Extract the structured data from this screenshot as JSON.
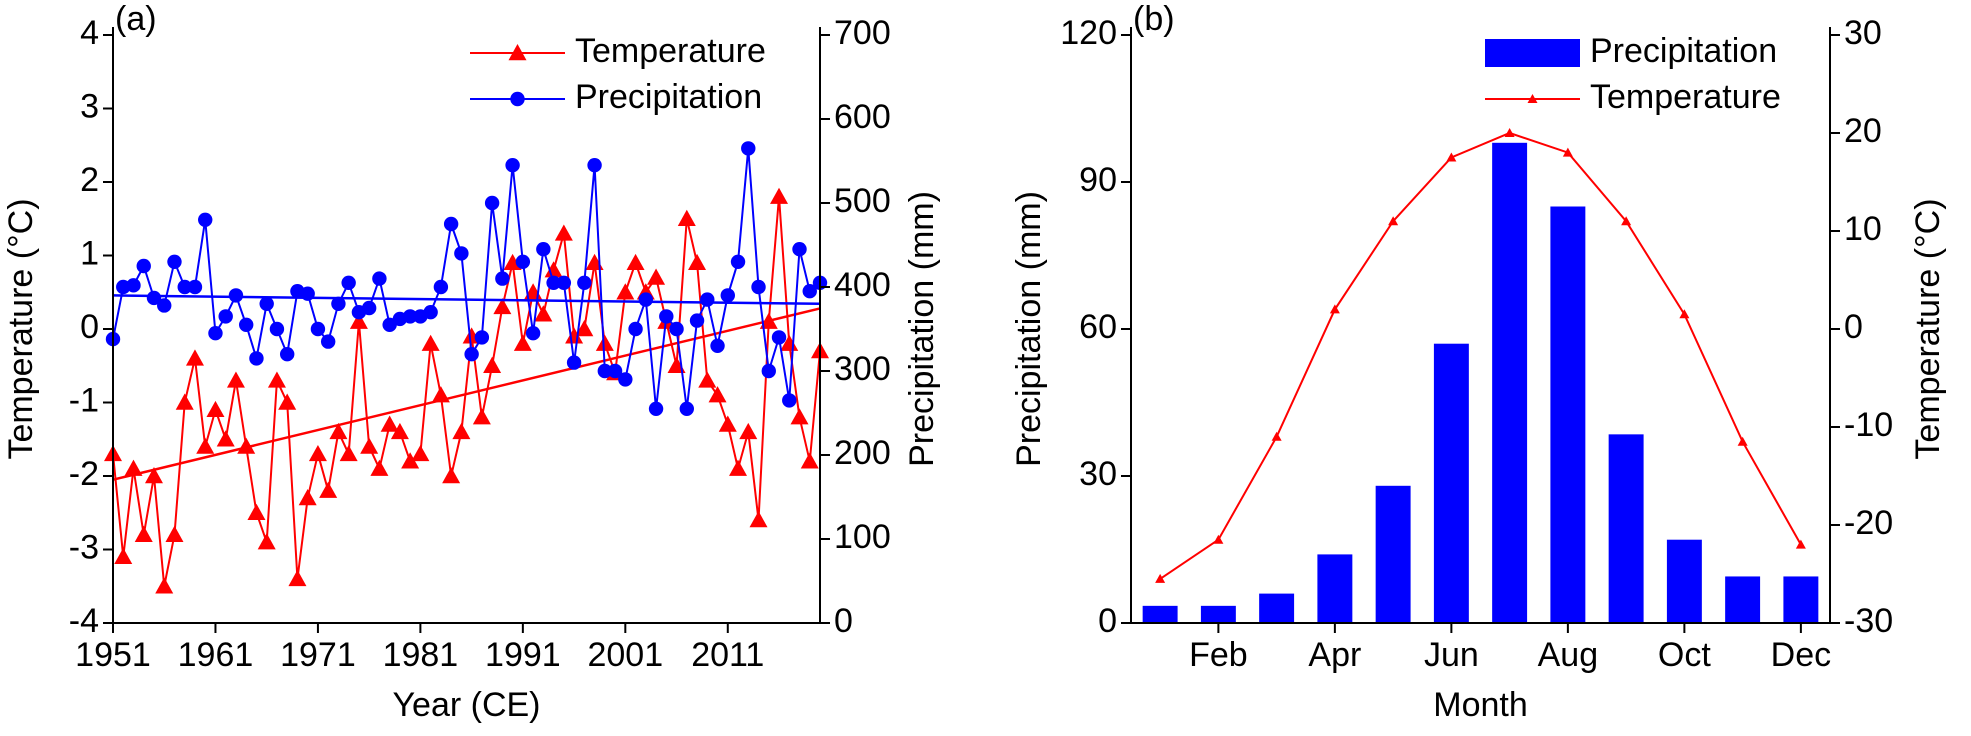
{
  "chart_data": [
    {
      "type": "line",
      "title": "(a)",
      "xlabel": "Year (CE)",
      "ylabel": "Temperature (°C)",
      "y2label": "Precipitation (mm)",
      "x": [
        1951,
        1952,
        1953,
        1954,
        1955,
        1956,
        1957,
        1958,
        1959,
        1960,
        1961,
        1962,
        1963,
        1964,
        1965,
        1966,
        1967,
        1968,
        1969,
        1970,
        1971,
        1972,
        1973,
        1974,
        1975,
        1976,
        1977,
        1978,
        1979,
        1980,
        1981,
        1982,
        1983,
        1984,
        1985,
        1986,
        1987,
        1988,
        1989,
        1990,
        1991,
        1992,
        1993,
        1994,
        1995,
        1996,
        1997,
        1998,
        1999,
        2000,
        2001,
        2002,
        2003,
        2004,
        2005,
        2006,
        2007,
        2008,
        2009,
        2010,
        2011,
        2012,
        2013,
        2014,
        2015,
        2016,
        2017,
        2018,
        2019,
        2020
      ],
      "xlim": [
        1951,
        2020
      ],
      "xticks": [
        1951,
        1961,
        1971,
        1981,
        1991,
        2001,
        2011
      ],
      "ylim": [
        -4,
        4
      ],
      "yticks": [
        -4,
        -3,
        -2,
        -1,
        0,
        1,
        2,
        3,
        4
      ],
      "y2lim": [
        0,
        700
      ],
      "y2ticks": [
        0,
        100,
        200,
        300,
        400,
        500,
        600,
        700
      ],
      "legend": "upper right",
      "series": [
        {
          "name": "Temperature",
          "color": "#ff0000",
          "marker": "triangle",
          "values": [
            -1.7,
            -3.1,
            -1.9,
            -2.8,
            -2.0,
            -3.5,
            -2.8,
            -1.0,
            -0.4,
            -1.6,
            -1.1,
            -1.5,
            -0.7,
            -1.6,
            -2.5,
            -2.9,
            -0.7,
            -1.0,
            -3.4,
            -2.3,
            -1.7,
            -2.2,
            -1.4,
            -1.7,
            0.1,
            -1.6,
            -1.9,
            -1.3,
            -1.4,
            -1.8,
            -1.7,
            -0.2,
            -0.9,
            -2.0,
            -1.4,
            -0.1,
            -1.2,
            -0.5,
            0.3,
            0.9,
            -0.2,
            0.5,
            0.2,
            0.8,
            1.3,
            -0.1,
            0.0,
            0.9,
            -0.2,
            -0.6,
            0.5,
            0.9,
            0.5,
            0.7,
            0.1,
            -0.5,
            1.5,
            0.9,
            -0.7,
            -0.9,
            -1.3,
            -1.9,
            -1.4,
            -2.6,
            0.1,
            1.8,
            -0.2,
            -1.2,
            -1.8,
            -0.3
          ],
          "trend": [
            -2.05,
            0.28
          ]
        },
        {
          "name": "Precipitation",
          "color": "#0000ff",
          "marker": "circle",
          "axis": "y2",
          "values": [
            338,
            400,
            402,
            425,
            387,
            378,
            430,
            400,
            400,
            480,
            345,
            365,
            390,
            355,
            315,
            380,
            350,
            320,
            395,
            392,
            350,
            335,
            380,
            405,
            370,
            375,
            410,
            355,
            362,
            365,
            365,
            370,
            400,
            475,
            440,
            320,
            340,
            500,
            410,
            545,
            430,
            345,
            445,
            405,
            405,
            310,
            405,
            545,
            300,
            300,
            290,
            350,
            385,
            255,
            365,
            350,
            255,
            360,
            385,
            330,
            390,
            430,
            565,
            400,
            300,
            340,
            265,
            445,
            395,
            405
          ],
          "trend": [
            390,
            380
          ]
        }
      ]
    },
    {
      "type": "bar",
      "title": "(b)",
      "xlabel": "Month",
      "ylabel": "Precipitation (mm)",
      "y2label": "Temperature (°C)",
      "categories": [
        null,
        "Feb",
        null,
        "Apr",
        null,
        "Jun",
        null,
        "Aug",
        null,
        "Oct",
        null,
        "Dec"
      ],
      "ylim": [
        0,
        120
      ],
      "yticks": [
        0,
        30,
        60,
        90,
        120
      ],
      "y2lim": [
        -30,
        30
      ],
      "y2ticks": [
        -30,
        -20,
        -10,
        0,
        10,
        20,
        30
      ],
      "legend": "upper right",
      "series": [
        {
          "name": "Precipitation",
          "color": "#0000ff",
          "values": [
            3.5,
            3.5,
            6,
            14,
            28,
            57,
            98,
            85,
            38.5,
            17,
            9.5,
            9.5
          ]
        },
        {
          "name": "Temperature",
          "color": "#ff0000",
          "type": "line",
          "marker": "triangle",
          "axis": "y2",
          "values": [
            -25.5,
            -21.5,
            -11,
            2,
            11,
            17.5,
            20,
            18,
            11,
            1.5,
            -11.5,
            -22
          ]
        }
      ]
    }
  ]
}
